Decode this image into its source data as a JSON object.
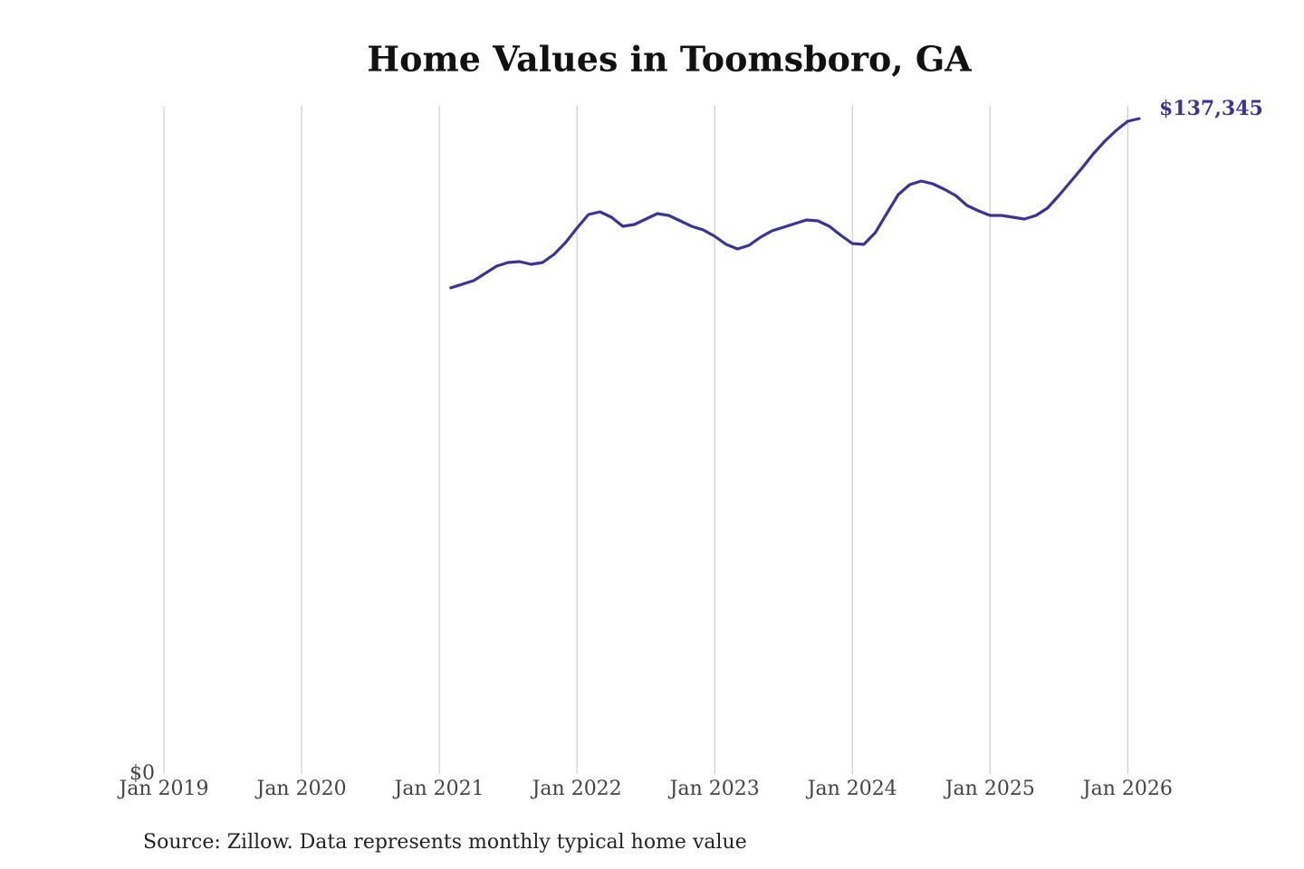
{
  "chart_data": {
    "type": "line",
    "title": "Home Values in Toomsboro, GA",
    "source": "Source: Zillow. Data represents monthly typical home value",
    "color": "#3b3494",
    "grid": true,
    "xlim": [
      "2019-01",
      "2026-02"
    ],
    "xticks": [
      {
        "value": "2019-01",
        "label": "Jan 2019"
      },
      {
        "value": "2020-01",
        "label": "Jan 2020"
      },
      {
        "value": "2021-01",
        "label": "Jan 2021"
      },
      {
        "value": "2022-01",
        "label": "Jan 2022"
      },
      {
        "value": "2023-01",
        "label": "Jan 2023"
      },
      {
        "value": "2024-01",
        "label": "Jan 2024"
      },
      {
        "value": "2025-01",
        "label": "Jan 2025"
      },
      {
        "value": "2026-01",
        "label": "Jan 2026"
      }
    ],
    "ylim": [
      0,
      140000
    ],
    "yticks": [
      {
        "value": 0,
        "label": "$0"
      }
    ],
    "x": [
      "2021-02",
      "2021-03",
      "2021-04",
      "2021-05",
      "2021-06",
      "2021-07",
      "2021-08",
      "2021-09",
      "2021-10",
      "2021-11",
      "2021-12",
      "2022-01",
      "2022-02",
      "2022-03",
      "2022-04",
      "2022-05",
      "2022-06",
      "2022-07",
      "2022-08",
      "2022-09",
      "2022-10",
      "2022-11",
      "2022-12",
      "2023-01",
      "2023-02",
      "2023-03",
      "2023-04",
      "2023-05",
      "2023-06",
      "2023-07",
      "2023-08",
      "2023-09",
      "2023-10",
      "2023-11",
      "2023-12",
      "2024-01",
      "2024-02",
      "2024-03",
      "2024-04",
      "2024-05",
      "2024-06",
      "2024-07",
      "2024-08",
      "2024-09",
      "2024-10",
      "2024-11",
      "2024-12",
      "2025-01",
      "2025-02",
      "2025-03",
      "2025-04",
      "2025-05",
      "2025-06",
      "2025-07",
      "2025-08",
      "2025-09",
      "2025-10",
      "2025-11",
      "2025-12",
      "2026-01",
      "2026-02"
    ],
    "values": [
      101870,
      102630,
      103390,
      104900,
      106420,
      107180,
      107370,
      106800,
      107180,
      108890,
      111350,
      114390,
      117230,
      117800,
      116670,
      114770,
      115150,
      116290,
      117420,
      117040,
      115910,
      114770,
      114010,
      112680,
      110970,
      110030,
      110780,
      112490,
      113820,
      114580,
      115340,
      116100,
      115910,
      114770,
      112870,
      111160,
      110970,
      113440,
      117420,
      121410,
      123500,
      124250,
      123690,
      122550,
      121220,
      119130,
      117990,
      117040,
      117040,
      116670,
      116290,
      117040,
      118560,
      121220,
      124060,
      126910,
      129940,
      132600,
      134880,
      136770,
      137345
    ],
    "value_labels": [
      null,
      null,
      null,
      null,
      null,
      null,
      null,
      null,
      null,
      null,
      null,
      null,
      null,
      null,
      null,
      null,
      null,
      null,
      null,
      null,
      null,
      null,
      null,
      null,
      null,
      null,
      null,
      null,
      null,
      null,
      null,
      null,
      null,
      null,
      null,
      null,
      null,
      null,
      null,
      null,
      null,
      null,
      null,
      null,
      null,
      null,
      null,
      null,
      null,
      null,
      null,
      null,
      null,
      null,
      null,
      null,
      null,
      null,
      null,
      null,
      "$137,345"
    ]
  }
}
